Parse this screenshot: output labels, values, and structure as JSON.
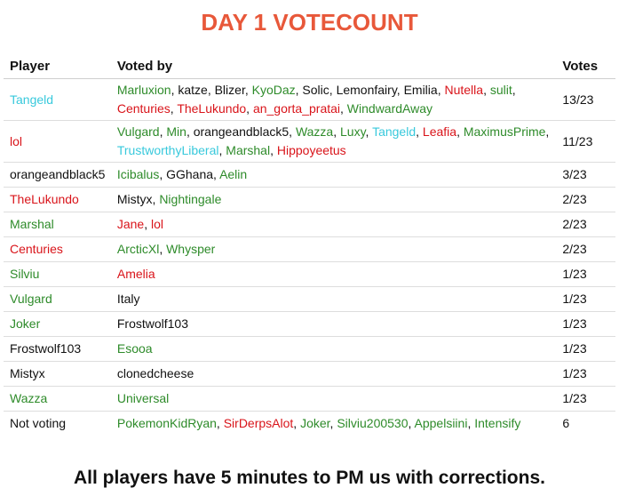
{
  "title": "DAY 1 VOTECOUNT",
  "table": {
    "headers": {
      "player": "Player",
      "voted_by": "Voted by",
      "votes": "Votes"
    },
    "rows": [
      {
        "player": "Tangeld",
        "player_color": "cyan",
        "voters": [
          {
            "name": "Marluxion",
            "color": "green"
          },
          {
            "name": "katze",
            "color": "black"
          },
          {
            "name": "Blizer",
            "color": "black"
          },
          {
            "name": "KyoDaz",
            "color": "green"
          },
          {
            "name": "Solic",
            "color": "black"
          },
          {
            "name": "Lemonfairy",
            "color": "black"
          },
          {
            "name": "Emilia",
            "color": "black"
          },
          {
            "name": "Nutella",
            "color": "red"
          },
          {
            "name": "sulit",
            "color": "green"
          },
          {
            "name": "Centuries",
            "color": "red"
          },
          {
            "name": "TheLukundo",
            "color": "red"
          },
          {
            "name": "an_gorta_pratai",
            "color": "red"
          },
          {
            "name": "WindwardAway",
            "color": "green"
          }
        ],
        "votes": "13/23"
      },
      {
        "player": "lol",
        "player_color": "red",
        "voters": [
          {
            "name": "Vulgard",
            "color": "green"
          },
          {
            "name": "Min",
            "color": "green"
          },
          {
            "name": "orangeandblack5",
            "color": "black"
          },
          {
            "name": "Wazza",
            "color": "green"
          },
          {
            "name": "Luxy",
            "color": "green"
          },
          {
            "name": "Tangeld",
            "color": "cyan"
          },
          {
            "name": "Leafia",
            "color": "red"
          },
          {
            "name": "MaximusPrime",
            "color": "green"
          },
          {
            "name": "TrustworthyLiberal",
            "color": "cyan"
          },
          {
            "name": "Marshal",
            "color": "green"
          },
          {
            "name": "Hippoyeetus",
            "color": "red"
          }
        ],
        "votes": "11/23"
      },
      {
        "player": "orangeandblack5",
        "player_color": "black",
        "voters": [
          {
            "name": "Icibalus",
            "color": "green"
          },
          {
            "name": "GGhana",
            "color": "black"
          },
          {
            "name": "Aelin",
            "color": "green"
          }
        ],
        "votes": "3/23"
      },
      {
        "player": "TheLukundo",
        "player_color": "red",
        "voters": [
          {
            "name": "Mistyx",
            "color": "black"
          },
          {
            "name": "Nightingale",
            "color": "green"
          }
        ],
        "votes": "2/23"
      },
      {
        "player": "Marshal",
        "player_color": "green",
        "voters": [
          {
            "name": "Jane",
            "color": "red"
          },
          {
            "name": "lol",
            "color": "red"
          }
        ],
        "votes": "2/23"
      },
      {
        "player": "Centuries",
        "player_color": "red",
        "voters": [
          {
            "name": "ArcticXl",
            "color": "green"
          },
          {
            "name": "Whysper",
            "color": "green"
          }
        ],
        "votes": "2/23"
      },
      {
        "player": "Silviu",
        "player_color": "green",
        "voters": [
          {
            "name": "Amelia",
            "color": "red"
          }
        ],
        "votes": "1/23"
      },
      {
        "player": "Vulgard",
        "player_color": "green",
        "voters": [
          {
            "name": "Italy",
            "color": "black"
          }
        ],
        "votes": "1/23"
      },
      {
        "player": "Joker",
        "player_color": "green",
        "voters": [
          {
            "name": "Frostwolf103",
            "color": "black"
          }
        ],
        "votes": "1/23"
      },
      {
        "player": "Frostwolf103",
        "player_color": "black",
        "voters": [
          {
            "name": "Esooa",
            "color": "green"
          }
        ],
        "votes": "1/23"
      },
      {
        "player": "Mistyx",
        "player_color": "black",
        "voters": [
          {
            "name": "clonedcheese",
            "color": "black"
          }
        ],
        "votes": "1/23"
      },
      {
        "player": "Wazza",
        "player_color": "green",
        "voters": [
          {
            "name": "Universal",
            "color": "green"
          }
        ],
        "votes": "1/23"
      },
      {
        "player": "Not voting",
        "player_color": "black",
        "voters": [
          {
            "name": "PokemonKidRyan",
            "color": "green"
          },
          {
            "name": "SirDerpsAlot",
            "color": "red"
          },
          {
            "name": "Joker",
            "color": "green"
          },
          {
            "name": "Silviu200530",
            "color": "green"
          },
          {
            "name": "Appelsiini",
            "color": "green"
          },
          {
            "name": "Intensify",
            "color": "green"
          }
        ],
        "votes": "6"
      }
    ]
  },
  "colors": {
    "title": "#e8583a",
    "cyan": "#38c9dc",
    "red": "#d9141a",
    "green": "#2e8b2a",
    "black": "#111111"
  },
  "footer": "All players have 5 minutes to PM us with corrections."
}
